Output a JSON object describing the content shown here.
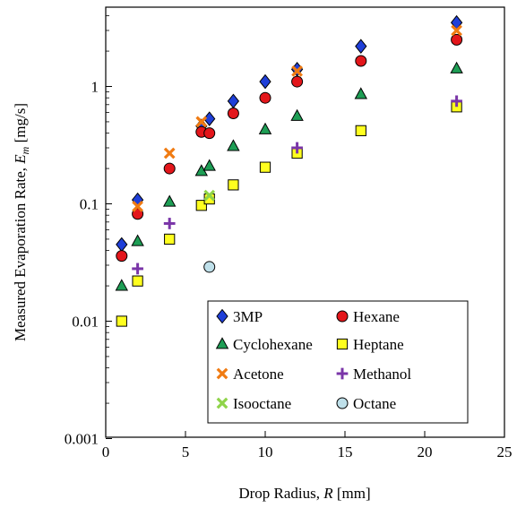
{
  "chart_data": {
    "type": "scatter",
    "title": "",
    "xlabel": {
      "prefix": "Drop Radius, ",
      "var": "R",
      "suffix": " [mm]"
    },
    "ylabel": {
      "prefix": "Measured Evaporation Rate, ",
      "var": "E",
      "sub": "m",
      "suffix": " [mg/s]"
    },
    "xlim": [
      0,
      25
    ],
    "ylim": [
      0.001,
      5
    ],
    "yscale": "log",
    "grid": false,
    "legend_position": "bottom-right",
    "x_ticks": [
      {
        "value": 0,
        "label": "0"
      },
      {
        "value": 5,
        "label": "5"
      },
      {
        "value": 10,
        "label": "10"
      },
      {
        "value": 15,
        "label": "15"
      },
      {
        "value": 20,
        "label": "20"
      },
      {
        "value": 25,
        "label": "25"
      }
    ],
    "y_ticks": [
      {
        "value": 0.001,
        "label": "0.001"
      },
      {
        "value": 0.01,
        "label": "0.01"
      },
      {
        "value": 0.1,
        "label": "0.1"
      },
      {
        "value": 1,
        "label": "1"
      }
    ],
    "series": [
      {
        "name": "3MP",
        "marker": "diamond",
        "color": "#1f3fd8",
        "x": [
          1,
          2,
          6,
          6.5,
          8,
          10,
          12,
          16,
          22
        ],
        "y": [
          0.045,
          0.108,
          0.46,
          0.53,
          0.75,
          1.1,
          1.4,
          2.2,
          3.5
        ]
      },
      {
        "name": "Hexane",
        "marker": "circle",
        "color": "#e3161b",
        "x": [
          1,
          2,
          4,
          6,
          6.5,
          8,
          10,
          12,
          16,
          22
        ],
        "y": [
          0.036,
          0.082,
          0.2,
          0.41,
          0.4,
          0.59,
          0.8,
          1.1,
          1.65,
          2.5
        ]
      },
      {
        "name": "Cyclohexane",
        "marker": "triangle",
        "color": "#1e9e55",
        "x": [
          1,
          2,
          4,
          6,
          6.5,
          8,
          10,
          12,
          16,
          22
        ],
        "y": [
          0.02,
          0.048,
          0.104,
          0.19,
          0.21,
          0.31,
          0.43,
          0.56,
          0.86,
          1.42
        ]
      },
      {
        "name": "Heptane",
        "marker": "square",
        "color": "#ffff1f",
        "x": [
          1,
          2,
          4,
          6,
          6.5,
          8,
          10,
          12,
          16,
          22
        ],
        "y": [
          0.01,
          0.022,
          0.05,
          0.097,
          0.11,
          0.145,
          0.205,
          0.27,
          0.42,
          0.67
        ]
      },
      {
        "name": "Acetone",
        "marker": "x",
        "color": "#f07b12",
        "x": [
          2,
          4,
          6,
          12,
          22
        ],
        "y": [
          0.095,
          0.27,
          0.5,
          1.35,
          3.0
        ]
      },
      {
        "name": "Methanol",
        "marker": "plus",
        "color": "#7a35a8",
        "x": [
          2,
          4,
          12,
          22
        ],
        "y": [
          0.028,
          0.068,
          0.3,
          0.75
        ]
      },
      {
        "name": "Isooctane",
        "marker": "x",
        "color": "#8fd44a",
        "x": [
          6.5
        ],
        "y": [
          0.118
        ]
      },
      {
        "name": "Octane",
        "marker": "circle",
        "color": "#bfe0ea",
        "x": [
          6.5
        ],
        "y": [
          0.029
        ]
      }
    ]
  }
}
